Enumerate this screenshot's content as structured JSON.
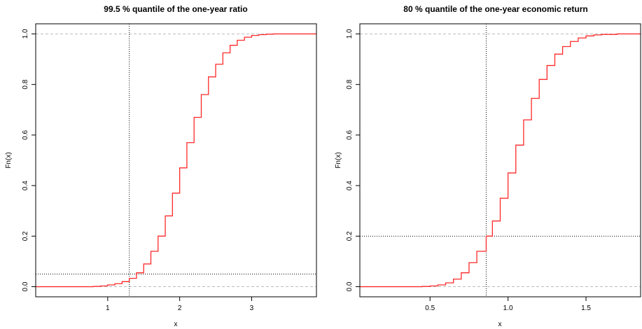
{
  "chart_data": [
    {
      "type": "line",
      "title": "99.5 % quantile of the one-year ratio",
      "xlabel": "x",
      "ylabel": "Fn(x)",
      "xlim": [
        0.0,
        3.9
      ],
      "ylim": [
        -0.04,
        1.04
      ],
      "xticks": [
        1,
        2,
        3
      ],
      "xtick_labels": [
        "1",
        "2",
        "3"
      ],
      "yticks": [
        0.0,
        0.2,
        0.4,
        0.6,
        0.8,
        1.0
      ],
      "ytick_labels": [
        "0.0",
        "0.2",
        "0.4",
        "0.6",
        "0.8",
        "1.0"
      ],
      "grid": false,
      "colors": {
        "series": "#ff2a2a",
        "reference": "#000000",
        "asymptote": "#bbbbbb"
      },
      "series": [
        {
          "x": [
            0.0,
            0.8,
            0.9,
            1.0,
            1.1,
            1.2,
            1.3,
            1.4,
            1.5,
            1.6,
            1.7,
            1.8,
            1.9,
            2.0,
            2.1,
            2.2,
            2.3,
            2.4,
            2.5,
            2.6,
            2.7,
            2.8,
            2.9,
            3.0,
            3.1,
            3.2,
            3.3,
            3.5,
            3.9
          ],
          "y": [
            0.0,
            0.001,
            0.003,
            0.007,
            0.012,
            0.02,
            0.033,
            0.055,
            0.09,
            0.14,
            0.2,
            0.28,
            0.37,
            0.47,
            0.57,
            0.67,
            0.76,
            0.83,
            0.88,
            0.925,
            0.955,
            0.975,
            0.987,
            0.994,
            0.997,
            0.999,
            1.0,
            1.0,
            1.0
          ]
        }
      ],
      "reference_lines": {
        "vertical_x": 1.3,
        "horizontal_y": 0.05
      },
      "asymptotes": [
        0,
        1
      ]
    },
    {
      "type": "line",
      "title": "80 % quantile of the one-year economic return",
      "xlabel": "x",
      "ylabel": "Fn(x)",
      "xlim": [
        0.05,
        1.85
      ],
      "ylim": [
        -0.04,
        1.04
      ],
      "xticks": [
        0.5,
        1.0,
        1.5
      ],
      "xtick_labels": [
        "0.5",
        "1.0",
        "1.5"
      ],
      "yticks": [
        0.0,
        0.2,
        0.4,
        0.6,
        0.8,
        1.0
      ],
      "ytick_labels": [
        "0.0",
        "0.2",
        "0.4",
        "0.6",
        "0.8",
        "1.0"
      ],
      "grid": false,
      "colors": {
        "series": "#ff2a2a",
        "reference": "#000000",
        "asymptote": "#bbbbbb"
      },
      "series": [
        {
          "x": [
            0.05,
            0.4,
            0.45,
            0.5,
            0.55,
            0.6,
            0.65,
            0.7,
            0.75,
            0.8,
            0.86,
            0.9,
            0.95,
            1.0,
            1.05,
            1.1,
            1.15,
            1.2,
            1.25,
            1.3,
            1.35,
            1.4,
            1.45,
            1.5,
            1.55,
            1.6,
            1.7,
            1.85
          ],
          "y": [
            0.0,
            0.0,
            0.001,
            0.003,
            0.007,
            0.015,
            0.03,
            0.055,
            0.095,
            0.14,
            0.2,
            0.26,
            0.35,
            0.45,
            0.56,
            0.66,
            0.745,
            0.82,
            0.875,
            0.92,
            0.95,
            0.97,
            0.984,
            0.992,
            0.996,
            0.998,
            1.0,
            1.0
          ]
        }
      ],
      "reference_lines": {
        "vertical_x": 0.86,
        "horizontal_y": 0.2
      },
      "asymptotes": [
        0,
        1
      ]
    }
  ]
}
